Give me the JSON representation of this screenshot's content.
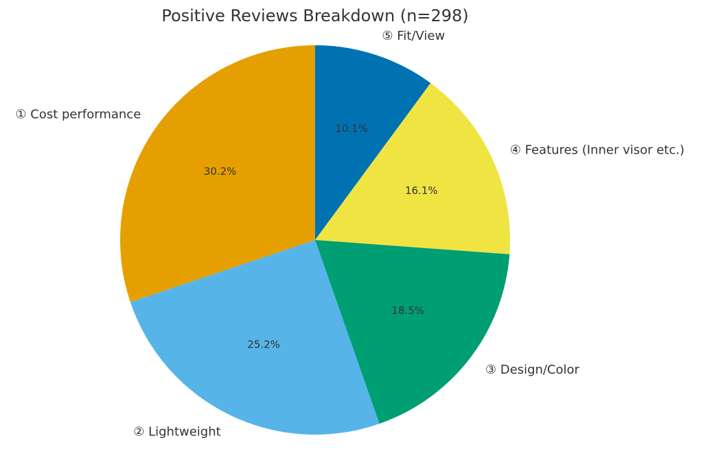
{
  "chart_data": {
    "type": "pie",
    "title": "Positive Reviews Breakdown (n=298)",
    "start": "top",
    "direction": "clockwise",
    "slices": [
      {
        "label": "⑤ Fit/View",
        "percent_label": "10.1%",
        "value": 10.1,
        "color": "#0072B2"
      },
      {
        "label": "④ Features (Inner visor etc.)",
        "percent_label": "16.1%",
        "value": 16.1,
        "color": "#F0E442"
      },
      {
        "label": "③ Design/Color",
        "percent_label": "18.5%",
        "value": 18.5,
        "color": "#009E73"
      },
      {
        "label": "② Lightweight",
        "percent_label": "25.2%",
        "value": 25.2,
        "color": "#56B4E9"
      },
      {
        "label": "① Cost performance",
        "percent_label": "30.2%",
        "value": 30.2,
        "color": "#E69F00"
      }
    ]
  }
}
